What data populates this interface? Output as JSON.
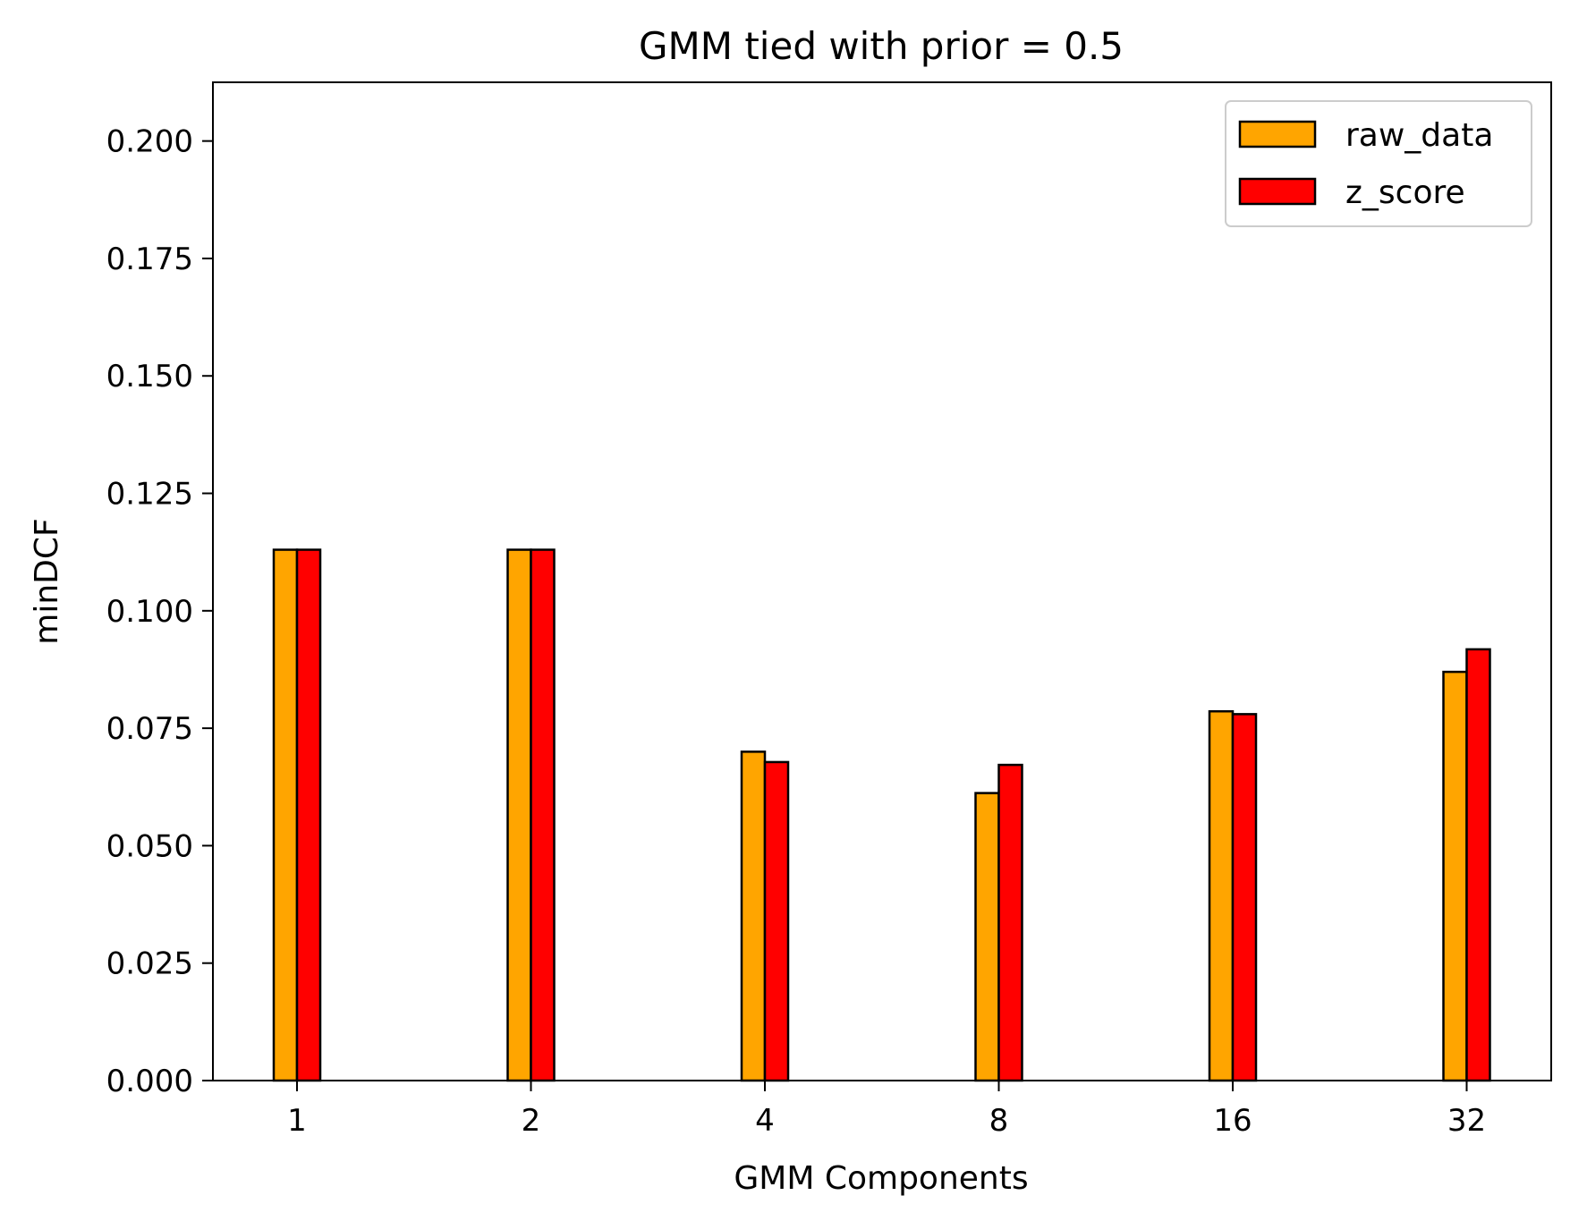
{
  "chart_data": {
    "type": "bar",
    "title": "GMM tied with prior = 0.5",
    "xlabel": "GMM Components",
    "ylabel": "minDCF",
    "categories": [
      "1",
      "2",
      "4",
      "8",
      "16",
      "32"
    ],
    "series": [
      {
        "name": "raw_data",
        "color": "#FFA500",
        "values": [
          0.113,
          0.113,
          0.07,
          0.0612,
          0.0786,
          0.087
        ]
      },
      {
        "name": "z_score",
        "color": "#FF0000",
        "values": [
          0.113,
          0.113,
          0.0678,
          0.0672,
          0.078,
          0.0918
        ]
      }
    ],
    "ylim": [
      0,
      0.2125
    ],
    "yticks": [
      "0.000",
      "0.025",
      "0.050",
      "0.075",
      "0.100",
      "0.125",
      "0.150",
      "0.175",
      "0.200"
    ],
    "legend_position": "top-right",
    "grid": false,
    "bar_edge_color": "#000000"
  }
}
